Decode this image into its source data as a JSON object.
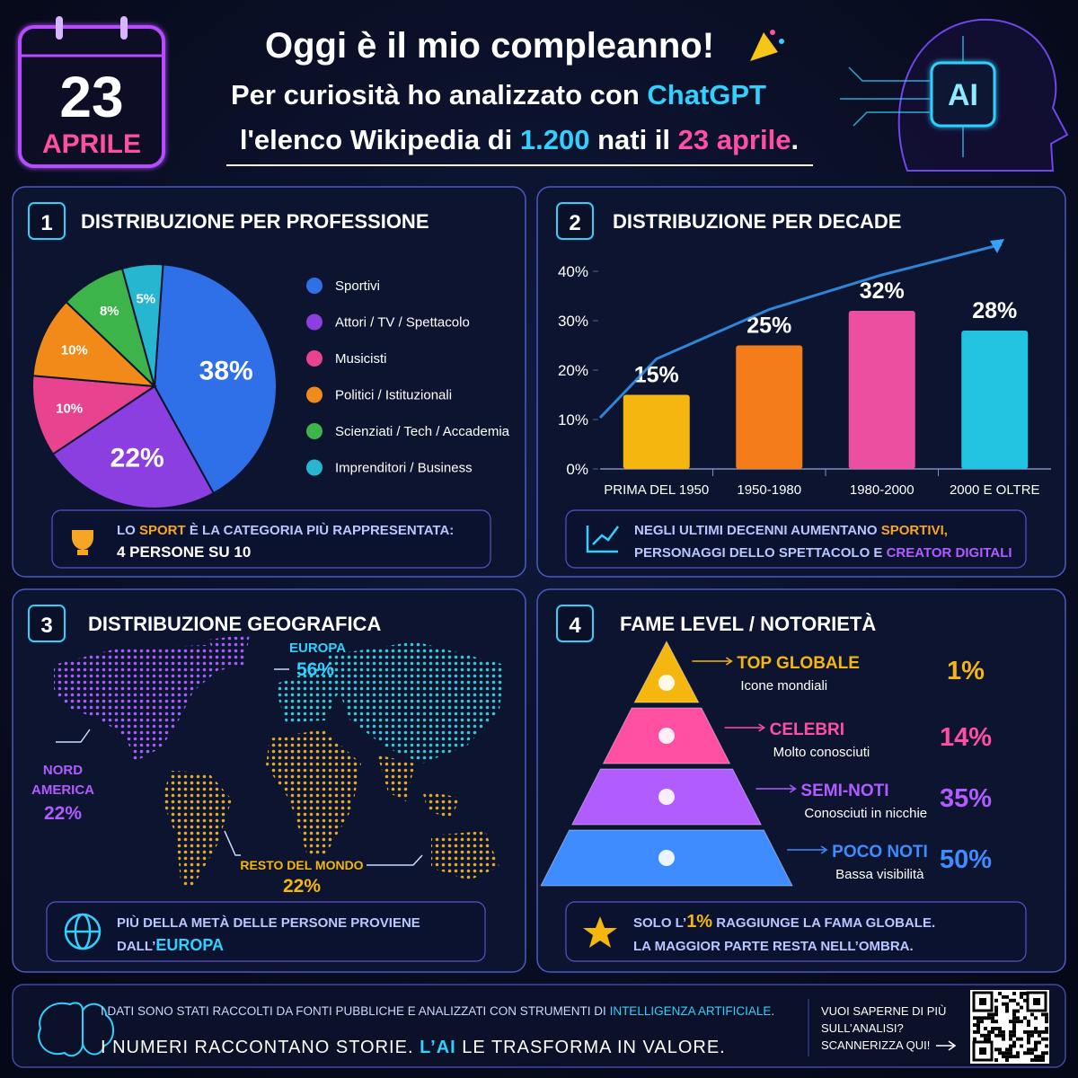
{
  "header": {
    "day": "23",
    "month": "APRILE",
    "title": "Oggi è il mio compleanno!",
    "line1": [
      "Per curiosità ho analizzato con ",
      "ChatGPT"
    ],
    "line2": [
      "l'elenco Wikipedia di ",
      "1.200",
      " nati il ",
      "23 aprile",
      "."
    ],
    "badge": "AI"
  },
  "panels": [
    {
      "number": "1",
      "title": "DISTRIBUZIONE PER PROFESSIONE",
      "note": [
        [
          "LO ",
          "SPORT",
          " È LA CATEGORIA PIÙ RAPPRESENTATA:"
        ],
        [
          "4 PERSONE SU 10"
        ]
      ]
    },
    {
      "number": "2",
      "title": "DISTRIBUZIONE PER DECADE",
      "note": [
        [
          "NEGLI ULTIMI DECENNI AUMENTANO ",
          "SPORTIVI,"
        ],
        [
          "PERSONAGGI DELLO SPETTACOLO E ",
          "CREATOR DIGITALI"
        ]
      ]
    },
    {
      "number": "3",
      "title": "DISTRIBUZIONE GEOGRAFICA",
      "regions": [
        {
          "name": [
            "EUROPA"
          ],
          "share": "56%"
        },
        {
          "name": [
            "NORD",
            "AMERICA"
          ],
          "share": "22%"
        },
        {
          "name": [
            "RESTO DEL MONDO"
          ],
          "share": "22%"
        }
      ],
      "note": [
        [
          "PIÙ DELLA METÀ DELLE PERSONE PROVIENE"
        ],
        [
          "DALL’",
          "EUROPA"
        ]
      ]
    },
    {
      "number": "4",
      "title": "FAME LEVEL / NOTORIETÀ",
      "levels": [
        {
          "name": "TOP GLOBALE",
          "desc": "Icone mondiali",
          "share": "1%"
        },
        {
          "name": "CELEBRI",
          "desc": "Molto conosciuti",
          "share": "14%"
        },
        {
          "name": "SEMI-NOTI",
          "desc": "Conosciuti in nicchie",
          "share": "35%"
        },
        {
          "name": "POCO NOTI",
          "desc": "Bassa visibilità",
          "share": "50%"
        }
      ],
      "note": [
        [
          "SOLO L’",
          "1%",
          " RAGGIUNGE LA FAMA GLOBALE."
        ],
        [
          "LA MAGGIOR PARTE RESTA NELL’OMBRA."
        ]
      ]
    }
  ],
  "chart_data": [
    {
      "type": "pie",
      "categories": [
        "Sportivi",
        "Attori / TV / Spettacolo",
        "Musicisti",
        "Politici / Istituzionali",
        "Scienziati / Tech / Accademia",
        "Imprenditori / Business"
      ],
      "values": [
        38,
        22,
        10,
        10,
        8,
        5
      ],
      "value_labels": [
        "38%",
        "22%",
        "10%",
        "10%",
        "8%",
        "5%"
      ],
      "colors": [
        "#2f6fe8",
        "#8b3fe0",
        "#e8438f",
        "#f28a1a",
        "#3cb44a",
        "#27b6d0"
      ]
    },
    {
      "type": "bar",
      "categories": [
        "PRIMA DEL 1950",
        "1950-1980",
        "1980-2000",
        "2000 E OLTRE"
      ],
      "values": [
        15,
        25,
        32,
        28
      ],
      "value_labels": [
        "15%",
        "25%",
        "32%",
        "28%"
      ],
      "colors": [
        "#f5b70f",
        "#f57c1a",
        "#ec4fa0",
        "#22c3e0"
      ],
      "ylim": [
        0,
        40
      ],
      "yticks": [
        {
          "value": 0,
          "label": "0%"
        },
        {
          "value": 10,
          "label": "10%"
        },
        {
          "value": 20,
          "label": "20%"
        },
        {
          "value": 30,
          "label": "30%"
        },
        {
          "value": 40,
          "label": "40%"
        }
      ]
    }
  ],
  "footer": {
    "line1": [
      "I DATI SONO STATI RACCOLTI DA FONTI PUBBLICHE E ANALIZZATI CON STRUMENTI DI ",
      "INTELLIGENZA ARTIFICIALE",
      "."
    ],
    "line2": [
      "I NUMERI RACCONTANO STORIE. ",
      "L’AI",
      " LE TRASFORMA IN VALORE."
    ],
    "cta": [
      "VUOI SAPERNE DI PIÙ",
      "SULL’ANALISI?",
      "SCANNERIZZA QUI!"
    ]
  }
}
